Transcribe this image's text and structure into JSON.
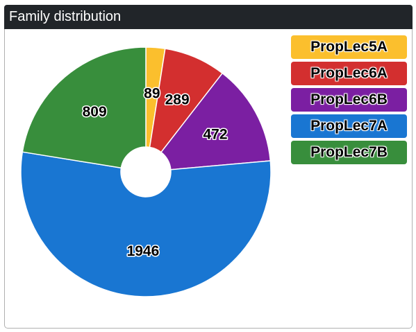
{
  "panel": {
    "title": "Family distribution"
  },
  "chart_data": {
    "type": "pie",
    "donut": true,
    "categories": [
      "PropLec5A",
      "PropLec6A",
      "PropLec6B",
      "PropLec7A",
      "PropLec7B"
    ],
    "values": [
      89,
      289,
      472,
      1946,
      809
    ],
    "colors": [
      "#fbbf2d",
      "#d32f2f",
      "#7b1fa2",
      "#1976d2",
      "#388e3c"
    ],
    "legend": {
      "position": "top-right"
    }
  }
}
